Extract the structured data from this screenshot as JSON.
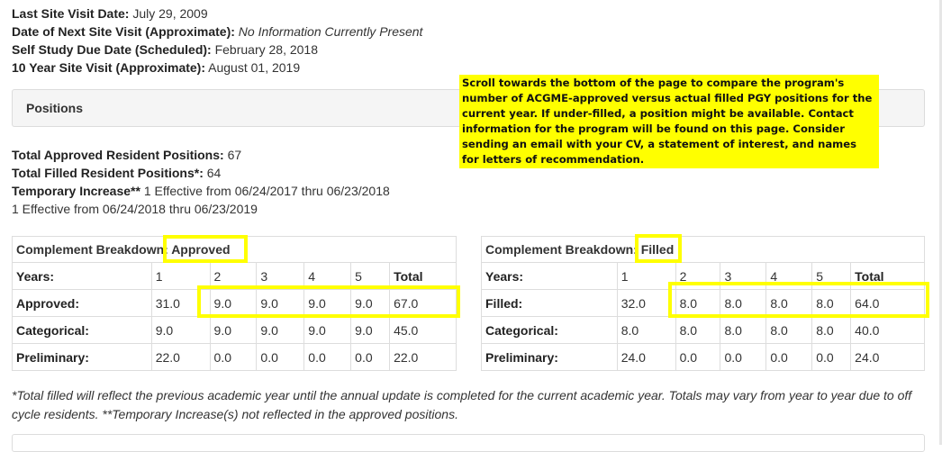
{
  "site_visits": [
    {
      "label": "Last Site Visit Date:",
      "value": "July 29, 2009",
      "italic": false
    },
    {
      "label": "Date of Next Site Visit (Approximate):",
      "value": "No Information Currently Present",
      "italic": true
    },
    {
      "label": "Self Study Due Date (Scheduled):",
      "value": "February 28, 2018",
      "italic": false
    },
    {
      "label": "10 Year Site Visit (Approximate):",
      "value": "August 01, 2019",
      "italic": false
    }
  ],
  "positions_panel": {
    "title": "Positions"
  },
  "note": "Scroll towards the bottom of the page to compare the program's number of ACGME-approved versus actual filled PGY positions for the current year. If under-filled, a position might be available. Contact information for the program will be found on this page. Consider sending an email with your CV, a statement of interest, and names for letters of recommendation.",
  "positions": {
    "total_approved_label": "Total Approved Resident Positions:",
    "total_approved_value": "67",
    "total_filled_label": "Total Filled Resident Positions*:",
    "total_filled_value": "64",
    "temp_label": "Temporary Increase**",
    "temp_line1": "1 Effective from 06/24/2017 thru 06/23/2018",
    "temp_line2": "1 Effective from 06/24/2018 thru 06/23/2019"
  },
  "approved_table": {
    "caption": "Complement Breakdown:",
    "tag": "Approved",
    "years_label": "Years:",
    "years": [
      "1",
      "2",
      "3",
      "4",
      "5",
      "Total"
    ],
    "rows": [
      {
        "label": "Approved:",
        "values": [
          "31.0",
          "9.0",
          "9.0",
          "9.0",
          "9.0",
          "67.0"
        ]
      },
      {
        "label": "Categorical:",
        "values": [
          "9.0",
          "9.0",
          "9.0",
          "9.0",
          "9.0",
          "45.0"
        ]
      },
      {
        "label": "Preliminary:",
        "values": [
          "22.0",
          "0.0",
          "0.0",
          "0.0",
          "0.0",
          "22.0"
        ]
      }
    ]
  },
  "filled_table": {
    "caption": "Complement Breakdown:",
    "tag": "Filled",
    "years_label": "Years:",
    "years": [
      "1",
      "2",
      "3",
      "4",
      "5",
      "Total"
    ],
    "rows": [
      {
        "label": "Filled:",
        "values": [
          "32.0",
          "8.0",
          "8.0",
          "8.0",
          "8.0",
          "64.0"
        ]
      },
      {
        "label": "Categorical:",
        "values": [
          "8.0",
          "8.0",
          "8.0",
          "8.0",
          "8.0",
          "40.0"
        ]
      },
      {
        "label": "Preliminary:",
        "values": [
          "24.0",
          "0.0",
          "0.0",
          "0.0",
          "0.0",
          "24.0"
        ]
      }
    ]
  },
  "footnote": "*Total filled will reflect the previous academic year until the annual update is completed for the current academic year. Totals may vary from year to year due to off cycle residents. **Temporary Increase(s) not reflected in the approved positions.",
  "colors": {
    "highlight": "#ffff00",
    "panel_bg": "#f5f5f5",
    "border": "#dddddd"
  }
}
